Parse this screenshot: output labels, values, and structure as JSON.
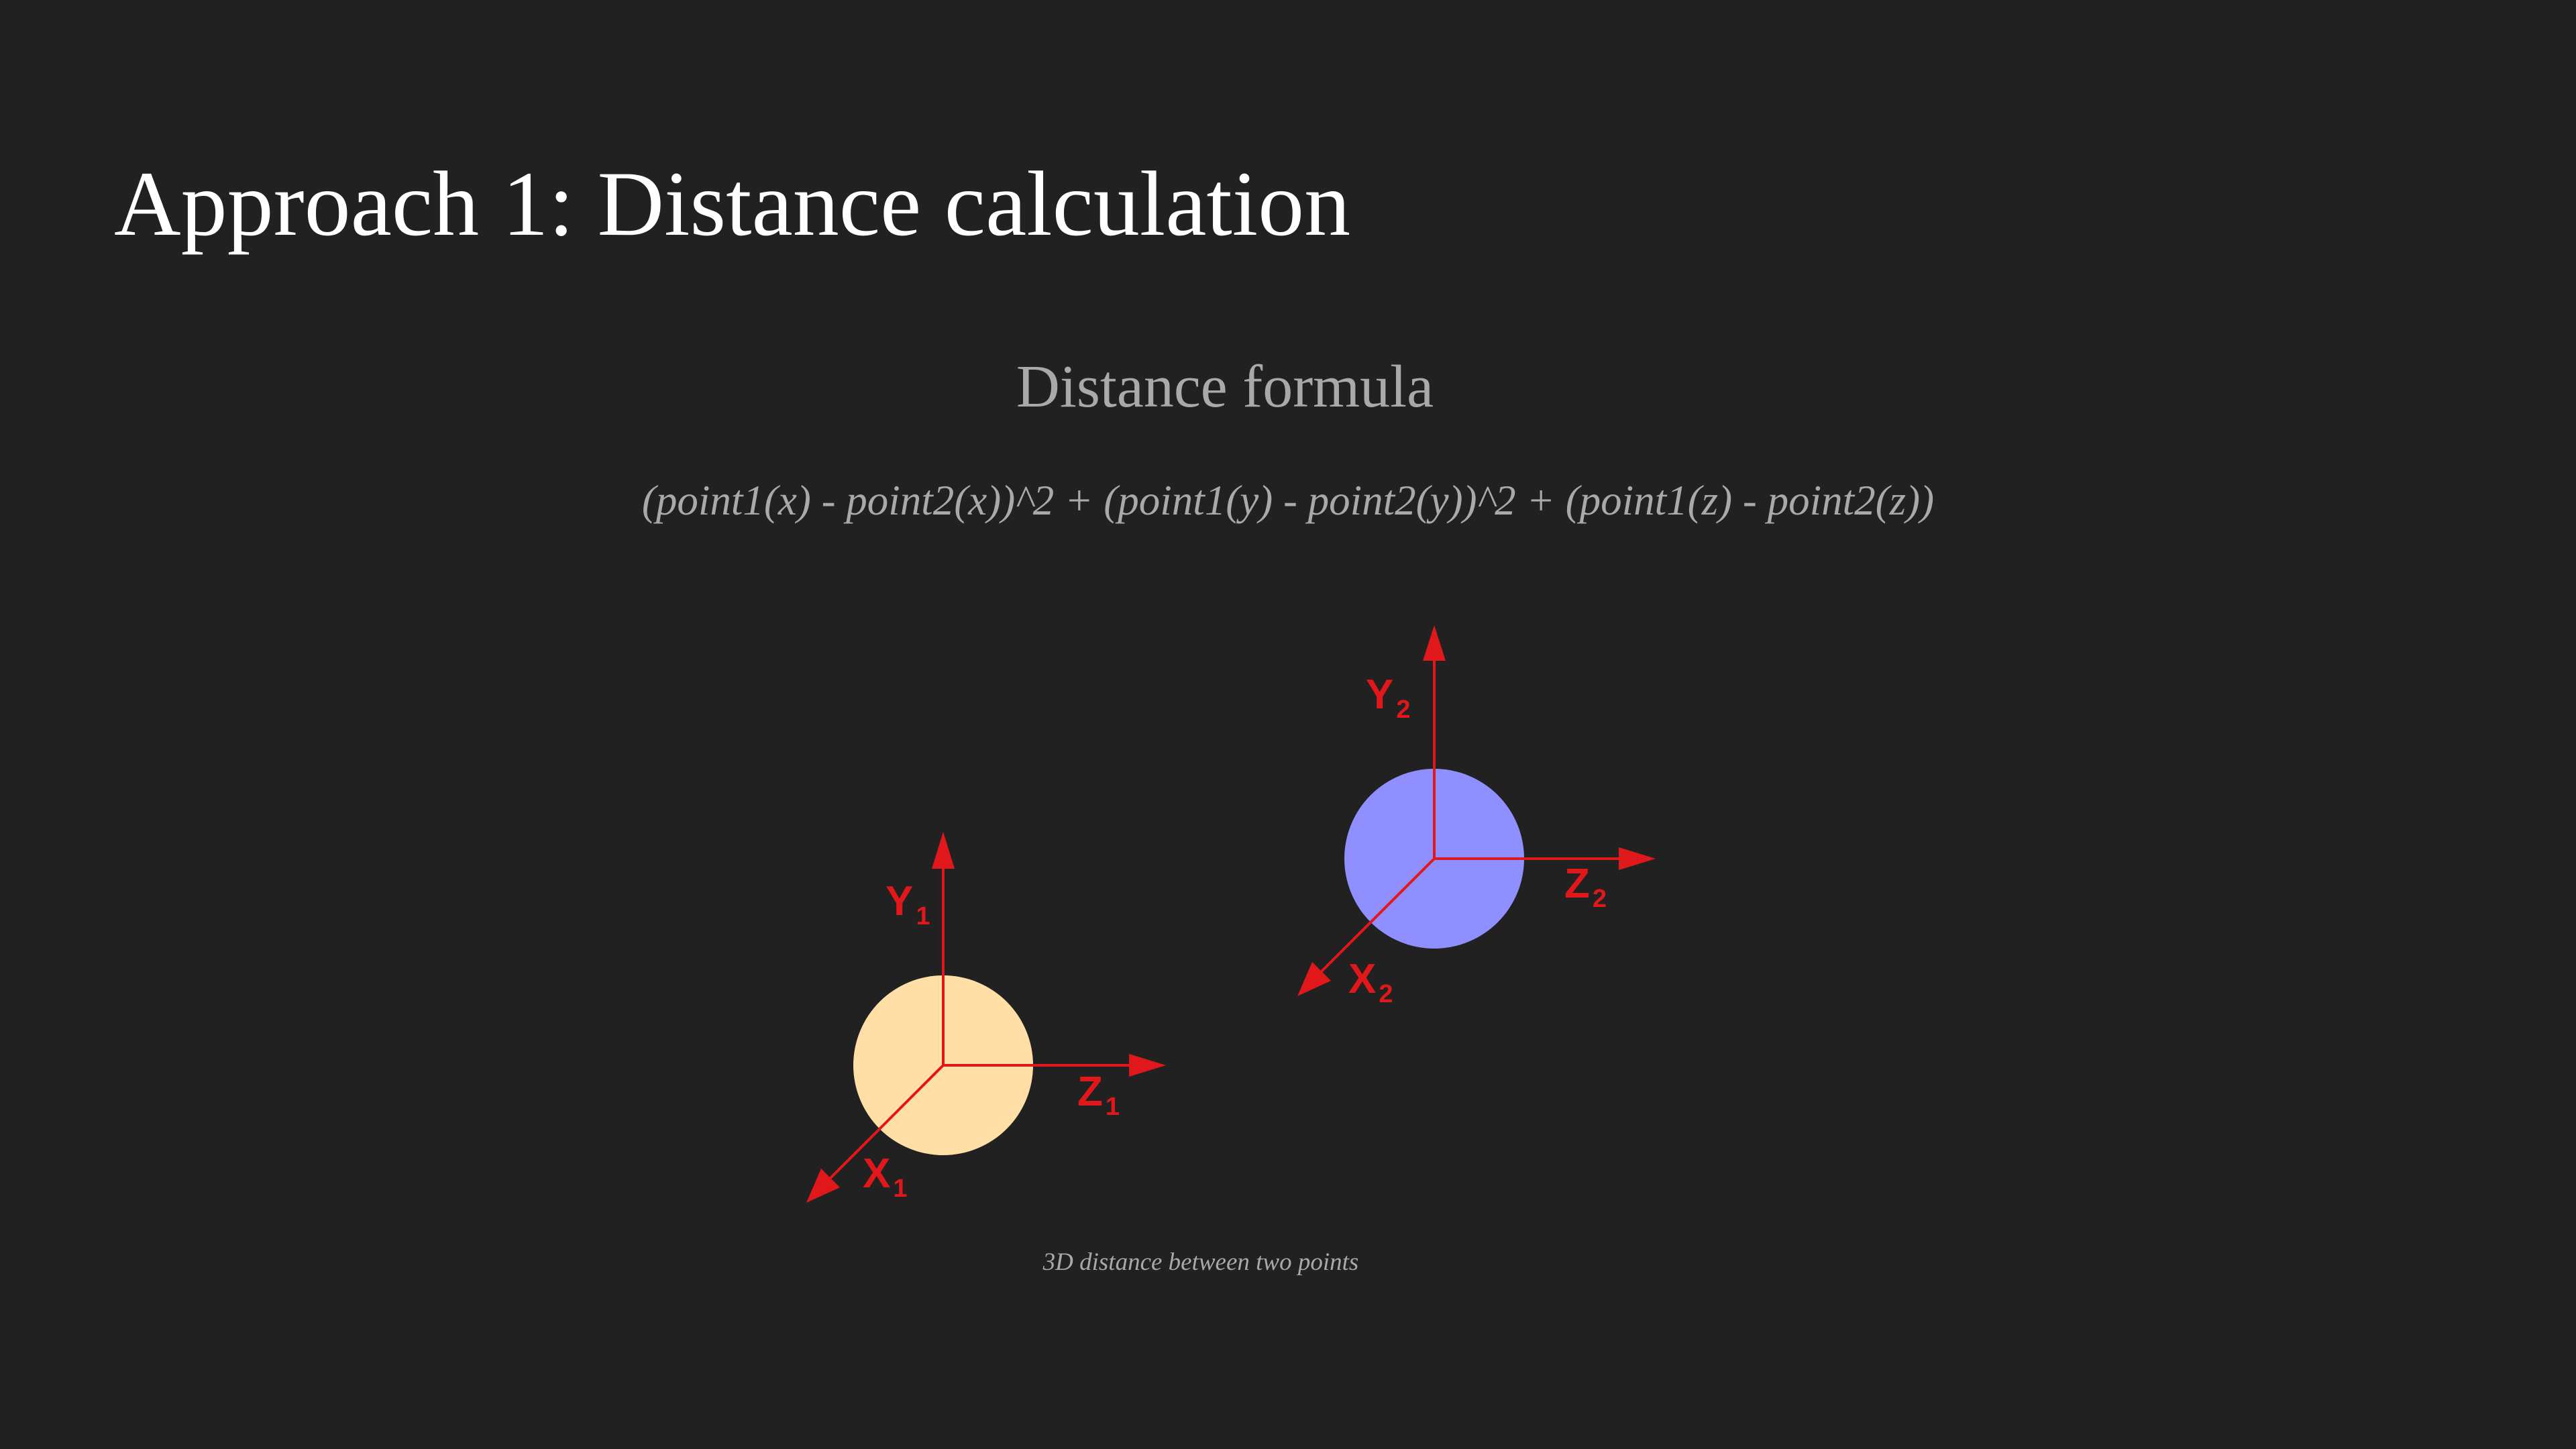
{
  "slide": {
    "title": "Approach 1:  Distance calculation",
    "subtitle": "Distance formula",
    "formula": "(point1(x) - point2(x))^2 + (point1(y) - point2(y))^2 + (point1(z) - point2(z))",
    "caption": "3D distance between two points"
  },
  "diagram": {
    "point1": {
      "color": "#ffdfa6",
      "axes": {
        "y": "Y",
        "z": "Z",
        "x": "X",
        "subscript": "1"
      }
    },
    "point2": {
      "color": "#8f8fff",
      "axes": {
        "y": "Y",
        "z": "Z",
        "x": "X",
        "subscript": "2"
      }
    },
    "axis_color": "#e0181c"
  }
}
